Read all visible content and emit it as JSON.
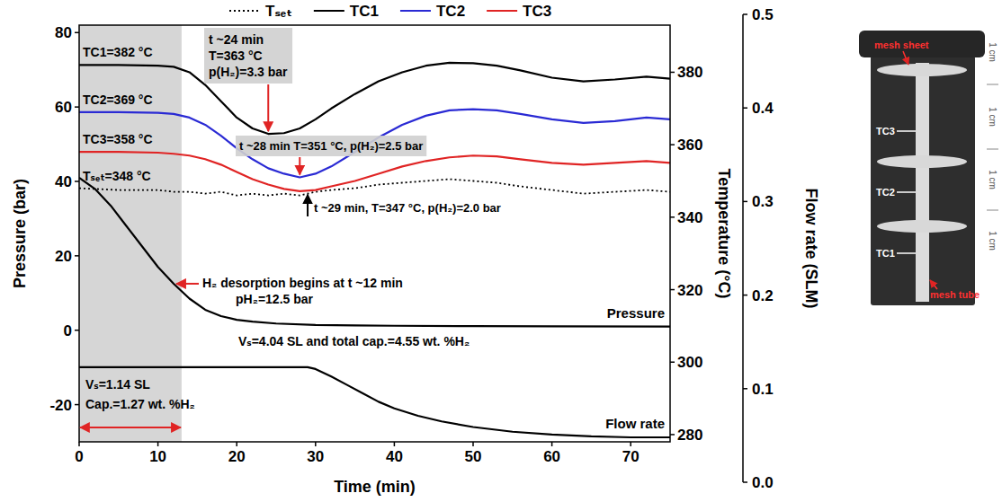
{
  "chart_data": {
    "type": "line",
    "x_label": "Time (min)",
    "y_label": "Pressure (bar)",
    "y2_label": "Temperature (°C)",
    "y3_label": "Flow rate (SLM)",
    "xlim": [
      0,
      75
    ],
    "xticks": [
      0,
      10,
      20,
      30,
      40,
      50,
      60,
      70
    ],
    "ylim": [
      -30,
      82
    ],
    "yticks": [
      -20,
      0,
      20,
      40,
      60,
      80
    ],
    "y2lim": [
      278,
      393
    ],
    "y2ticks": [
      280,
      300,
      320,
      340,
      360,
      380
    ],
    "y3lim": [
      0,
      0.5
    ],
    "y3ticks": [
      {
        "value": 0,
        "label": "0.0"
      },
      0.1,
      0.2,
      0.3,
      0.4,
      0.5
    ],
    "grid": false,
    "legend": "top",
    "shaded_span": [
      0,
      13
    ],
    "series": [
      {
        "name": "Tₛₑₜ",
        "color": "#000000",
        "line_style": "dotted",
        "axis": "y2",
        "x": [
          0,
          5,
          10,
          12,
          14,
          16,
          18,
          20,
          22,
          24,
          26,
          28,
          30,
          32,
          35,
          38,
          41,
          44,
          47,
          50,
          53,
          56,
          60,
          64,
          68,
          72,
          75
        ],
        "values": [
          348,
          347.5,
          347.5,
          347,
          347,
          346.5,
          347,
          346,
          346.5,
          346,
          346.5,
          346,
          347,
          347.5,
          348,
          349,
          349.5,
          350,
          350.5,
          350,
          349.5,
          348.5,
          347.5,
          346.5,
          347,
          347.5,
          347
        ]
      },
      {
        "name": "TC1",
        "color": "#000000",
        "line_style": "solid",
        "axis": "y2",
        "x": [
          0,
          5,
          10,
          12,
          14,
          16,
          18,
          20,
          22,
          24,
          26,
          28,
          30,
          32,
          35,
          38,
          41,
          44,
          47,
          50,
          53,
          56,
          60,
          64,
          68,
          72,
          75
        ],
        "values": [
          382,
          382,
          381.8,
          381.5,
          380,
          376.5,
          372,
          367.5,
          364.5,
          363,
          363.2,
          364.5,
          367,
          370,
          374,
          377.5,
          380,
          381.8,
          382.6,
          382.5,
          381.8,
          380.5,
          378.5,
          377.5,
          378,
          378.8,
          378.2
        ]
      },
      {
        "name": "TC2",
        "color": "#2a2ad4",
        "line_style": "solid",
        "axis": "y2",
        "x": [
          0,
          5,
          10,
          12,
          14,
          16,
          18,
          20,
          22,
          24,
          26,
          28,
          30,
          32,
          35,
          38,
          41,
          44,
          47,
          50,
          53,
          56,
          60,
          64,
          68,
          72,
          75
        ],
        "values": [
          369,
          369,
          368.8,
          368.5,
          367.5,
          365.5,
          362.5,
          359,
          356,
          353.5,
          352,
          351,
          352,
          354,
          358,
          362,
          365.5,
          368,
          369.5,
          369.8,
          369.5,
          368.5,
          367,
          366,
          366.5,
          367.5,
          367
        ]
      },
      {
        "name": "TC3",
        "color": "#e02424",
        "line_style": "solid",
        "axis": "y2",
        "x": [
          0,
          5,
          10,
          12,
          14,
          16,
          18,
          20,
          22,
          24,
          26,
          28,
          30,
          32,
          35,
          38,
          41,
          44,
          47,
          50,
          53,
          56,
          60,
          64,
          68,
          72,
          75
        ],
        "values": [
          358,
          358,
          357.8,
          357.5,
          357,
          356,
          354.5,
          352.5,
          350.5,
          349,
          347.8,
          347.2,
          347.5,
          348.5,
          350,
          352,
          354,
          355.5,
          356.5,
          357,
          356.8,
          356,
          355,
          354.5,
          355,
          355.5,
          355
        ]
      },
      {
        "name": "Pressure",
        "color": "#000000",
        "line_style": "solid",
        "axis": "y",
        "x": [
          0,
          2,
          4,
          6,
          8,
          10,
          12,
          14,
          16,
          18,
          20,
          22,
          25,
          30,
          35,
          40,
          50,
          60,
          75
        ],
        "values": [
          41,
          38,
          33.5,
          28,
          22.5,
          17,
          12.5,
          8.5,
          5.5,
          3.8,
          2.8,
          2.3,
          1.8,
          1.4,
          1.3,
          1.2,
          1.1,
          1.05,
          1
        ]
      },
      {
        "name": "Flow rate",
        "color": "#000000",
        "line_style": "solid",
        "axis": "y3",
        "x": [
          0,
          29,
          30,
          32,
          34,
          36,
          38,
          40,
          43,
          46,
          50,
          55,
          60,
          65,
          70,
          75
        ],
        "values": [
          0.123,
          0.123,
          0.121,
          0.113,
          0.104,
          0.095,
          0.086,
          0.079,
          0.071,
          0.065,
          0.059,
          0.054,
          0.051,
          0.049,
          0.048,
          0.048
        ]
      }
    ],
    "annotations": [
      {
        "lines": [
          "t ~24 min",
          "T=363 °C",
          "p(H₂)=3.3 bar"
        ],
        "x": 24,
        "y": 363,
        "axis": "y2"
      },
      {
        "lines": [
          "t ~28 min T=351 °C, p(H₂)=2.5 bar"
        ],
        "x": 28,
        "y": 351,
        "axis": "y2"
      },
      {
        "lines": [
          "t ~29 min, T=347 °C, p(H₂)=2.0 bar"
        ],
        "x": 29,
        "y": 347,
        "axis": "y2"
      },
      {
        "lines": [
          "H₂ desorption begins at t ~12 min",
          "pH₂=12.5 bar"
        ],
        "x": 12,
        "y": 12.5,
        "axis": "y"
      },
      {
        "lines": [
          "Vₛ=4.04 SL and total cap.=4.55 wt. %H₂"
        ]
      },
      {
        "lines": [
          "Vₛ=1.14 SL",
          "Cap.=1.27 wt. %H₂"
        ]
      },
      {
        "lines": [
          "TC1=382 °C"
        ]
      },
      {
        "lines": [
          "TC2=369 °C"
        ]
      },
      {
        "lines": [
          "TC3=358 °C"
        ]
      },
      {
        "lines": [
          "Tₛₑₜ=348 °C"
        ]
      }
    ]
  },
  "inset": {
    "labels": [
      "mesh sheet",
      "TC3",
      "TC2",
      "TC1",
      "mesh tube"
    ],
    "scale_labels": [
      "1 cm",
      "1 cm",
      "1 cm",
      "1 cm"
    ]
  }
}
